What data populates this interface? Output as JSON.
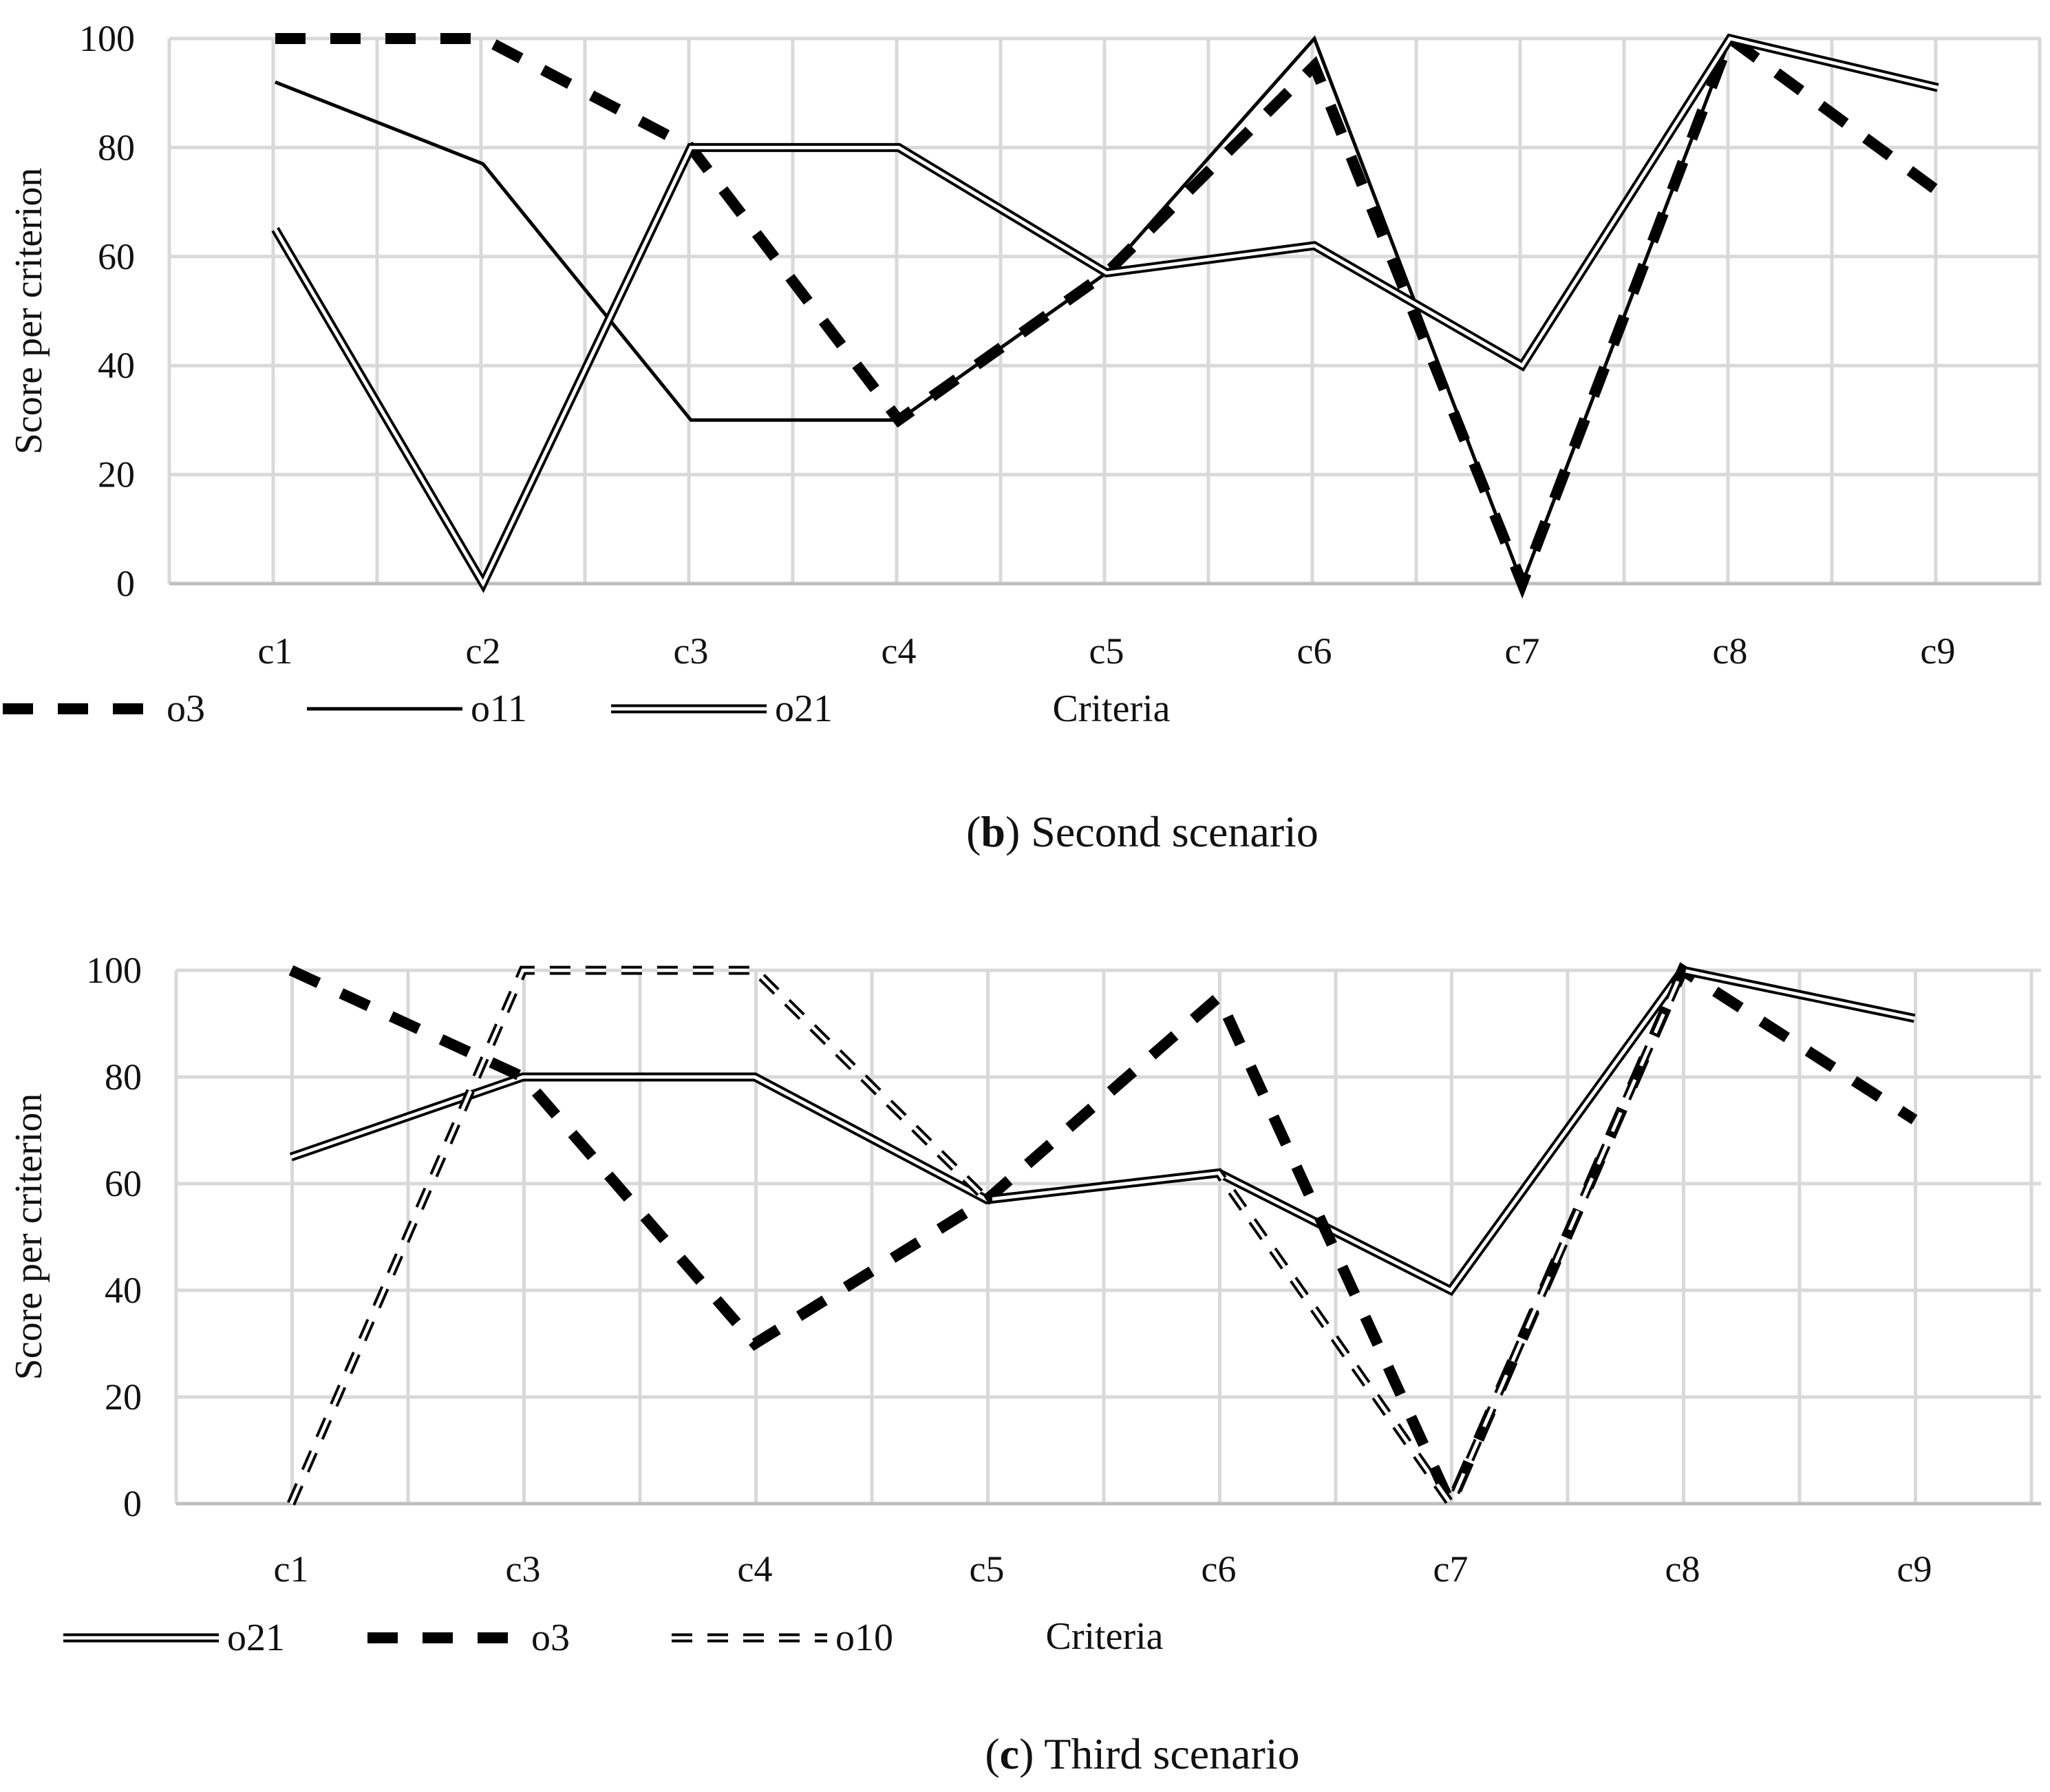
{
  "chart_data": [
    {
      "type": "line",
      "caption_letter": "b",
      "caption_text": "Second scenario",
      "xlabel": "Criteria",
      "ylabel": "Score per criterion",
      "ylim": [
        0,
        100
      ],
      "yticks": [
        "0",
        "20",
        "40",
        "60",
        "80",
        "100"
      ],
      "grid": true,
      "categories": [
        "c1",
        "c2",
        "c3",
        "c4",
        "c5",
        "c6",
        "c7",
        "c8",
        "c9"
      ],
      "series": [
        {
          "name": "o3",
          "style": "heavy-dash",
          "values": [
            100,
            100,
            80,
            30,
            57,
            95,
            0,
            100,
            72
          ]
        },
        {
          "name": "o11",
          "style": "solid",
          "values": [
            92,
            77,
            30,
            30,
            57,
            100,
            0,
            100,
            91
          ]
        },
        {
          "name": "o21",
          "style": "double",
          "values": [
            65,
            0,
            80,
            80,
            57,
            62,
            40,
            100,
            91
          ]
        }
      ]
    },
    {
      "type": "line",
      "caption_letter": "c",
      "caption_text": "Third scenario",
      "xlabel": "Criteria",
      "ylabel": "Score per criterion",
      "ylim": [
        0,
        100
      ],
      "yticks": [
        "0",
        "20",
        "40",
        "60",
        "80",
        "100"
      ],
      "grid": true,
      "categories": [
        "c1",
        "c3",
        "c4",
        "c5",
        "c6",
        "c7",
        "c8",
        "c9"
      ],
      "series": [
        {
          "name": "o21",
          "style": "double",
          "values": [
            65,
            80,
            80,
            57,
            62,
            40,
            100,
            91
          ]
        },
        {
          "name": "o3",
          "style": "heavy-dash",
          "values": [
            100,
            80,
            30,
            57,
            95,
            0,
            100,
            72
          ]
        },
        {
          "name": "o10",
          "style": "double-dash",
          "values": [
            0,
            100,
            100,
            57,
            62,
            0,
            100,
            91
          ]
        }
      ]
    }
  ]
}
